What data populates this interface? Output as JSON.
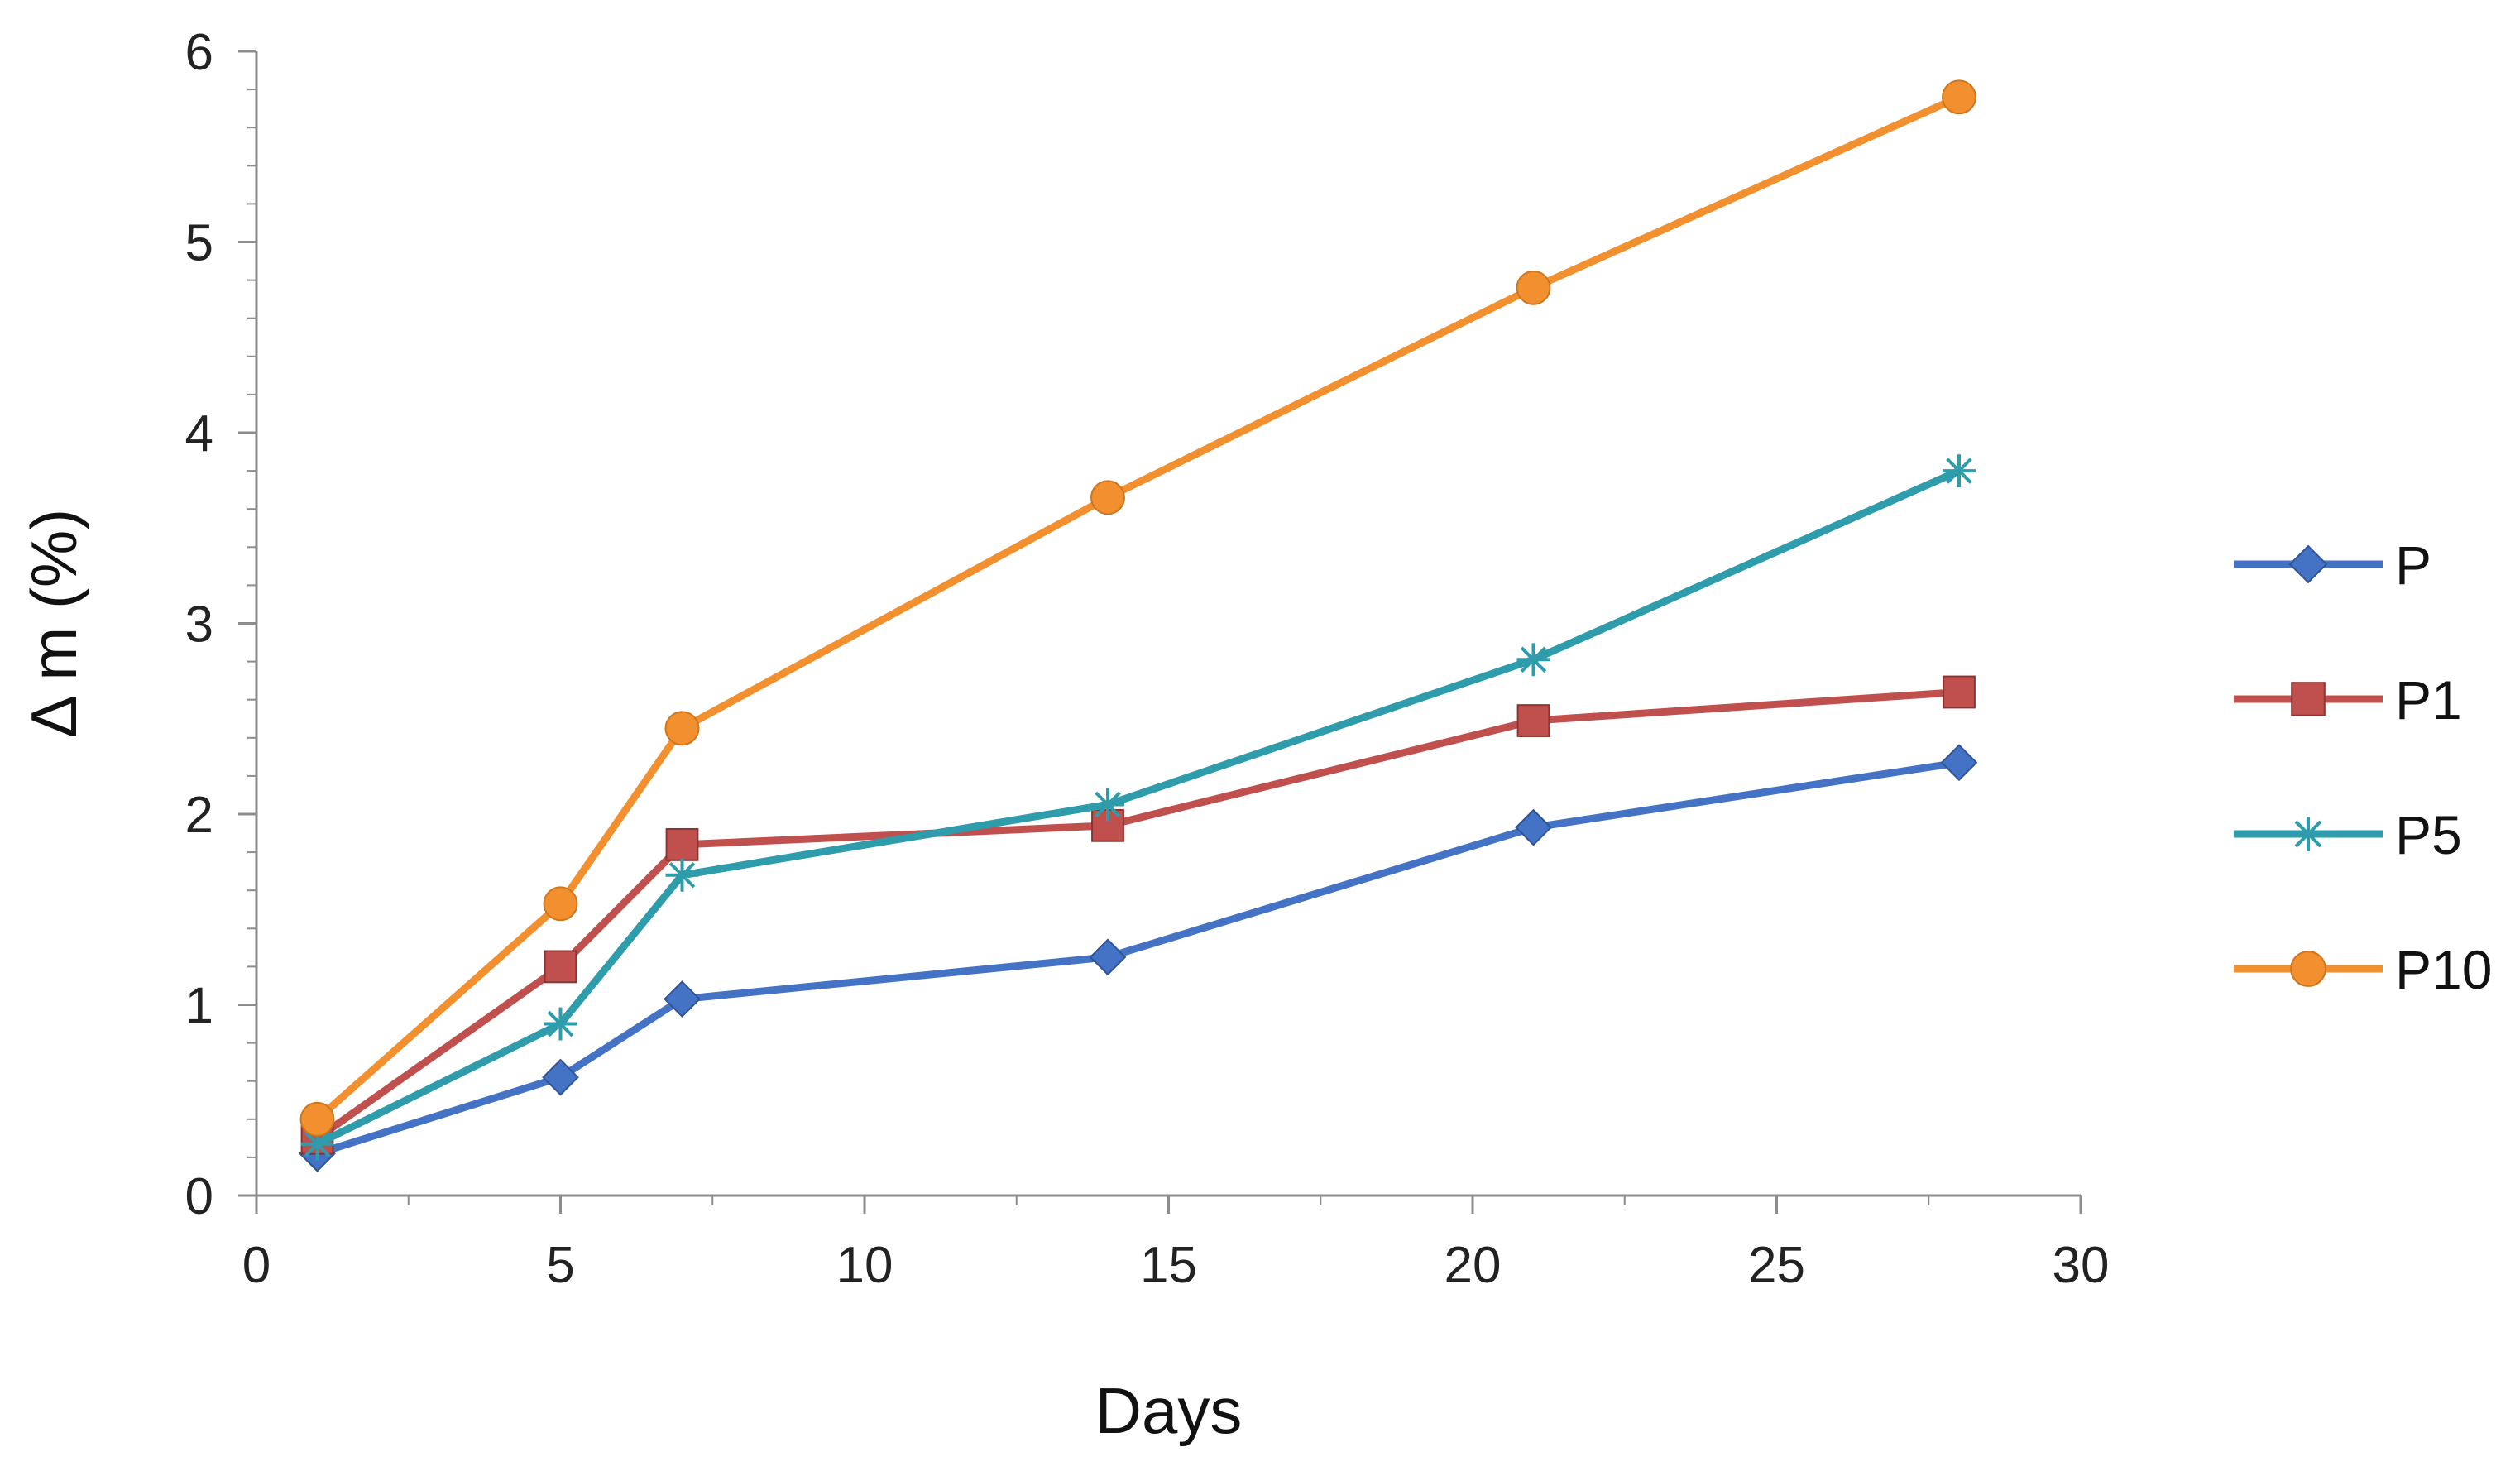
{
  "chart_data": {
    "type": "line",
    "title": "",
    "xlabel": "Days",
    "ylabel": "Δ m (%)",
    "xlim": [
      0,
      30
    ],
    "ylim": [
      0,
      6
    ],
    "xticks": [
      0,
      5,
      10,
      15,
      20,
      25,
      30
    ],
    "yticks": [
      0,
      1,
      2,
      3,
      4,
      5,
      6
    ],
    "grid": false,
    "legend_position": "right",
    "x": [
      1,
      5,
      7,
      14,
      21,
      28
    ],
    "series": [
      {
        "name": "P",
        "marker": "diamond",
        "color": "#4472C4",
        "values": [
          0.22,
          0.62,
          1.03,
          1.25,
          1.93,
          2.27
        ]
      },
      {
        "name": "P1",
        "marker": "square",
        "color": "#C0504D",
        "values": [
          0.3,
          1.2,
          1.84,
          1.94,
          2.49,
          2.64
        ]
      },
      {
        "name": "P5",
        "marker": "asterisk",
        "color": "#2E9CAA",
        "values": [
          0.27,
          0.9,
          1.68,
          2.05,
          2.81,
          3.8
        ]
      },
      {
        "name": "P10",
        "marker": "circle",
        "color": "#F28F2E",
        "values": [
          0.4,
          1.53,
          2.45,
          3.66,
          4.76,
          5.76
        ]
      }
    ]
  }
}
